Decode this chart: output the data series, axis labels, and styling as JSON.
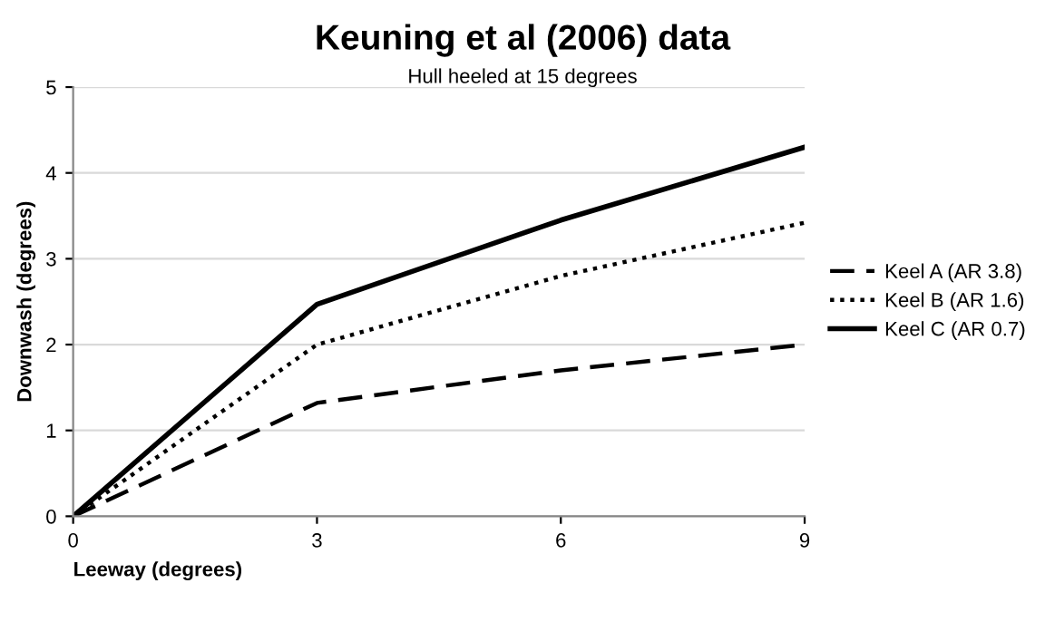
{
  "chart_data": {
    "type": "line",
    "title": "Keuning et al (2006) data",
    "subtitle": "Hull heeled at 15 degrees",
    "xlabel": "Leeway (degrees)",
    "ylabel": "Downwash (degrees)",
    "x": [
      0,
      3,
      6,
      9
    ],
    "series": [
      {
        "name": "Keel A (AR 3.8)",
        "color": "#000000",
        "line_style": "dashed",
        "values": [
          0,
          1.32,
          1.7,
          2.0
        ]
      },
      {
        "name": "Keel B (AR 1.6)",
        "color": "#000000",
        "line_style": "dotted",
        "values": [
          0,
          2.0,
          2.8,
          3.42
        ]
      },
      {
        "name": "Keel C (AR 0.7)",
        "color": "#000000",
        "line_style": "solid",
        "values": [
          0,
          2.47,
          3.45,
          4.3
        ]
      }
    ],
    "xlim": [
      0,
      9
    ],
    "ylim": [
      0,
      5
    ],
    "xticks": [
      0,
      3,
      6,
      9
    ],
    "yticks": [
      0,
      1,
      2,
      3,
      4,
      5
    ],
    "grid": "y",
    "legend": "right",
    "marker": "none"
  }
}
